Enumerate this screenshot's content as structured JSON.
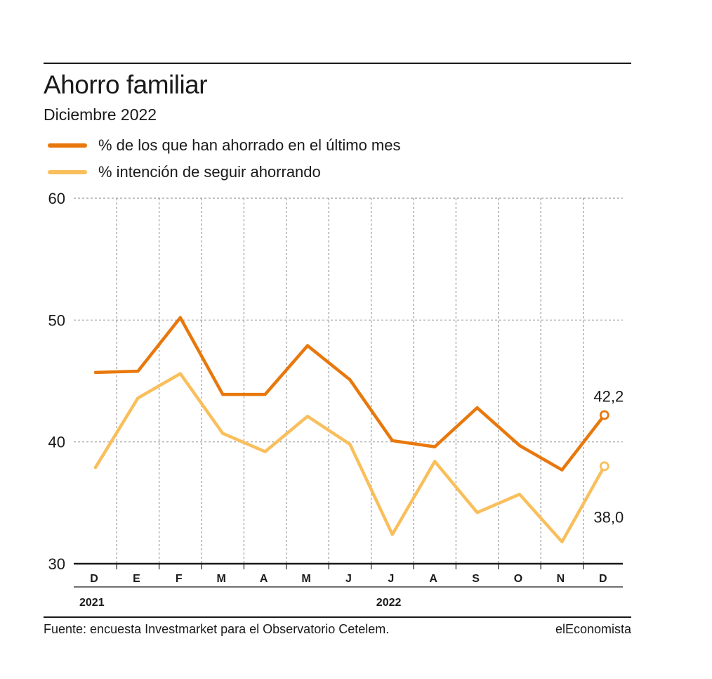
{
  "header": {
    "title": "Ahorro familiar",
    "subtitle": "Diciembre 2022"
  },
  "footer": {
    "source": "Fuente: encuesta Investmarket para el Observatorio Cetelem.",
    "brand": "elEconomista"
  },
  "colors": {
    "series1": "#e8780c",
    "series2": "#f9bf5c",
    "grid": "#9a9a9a",
    "axis": "#1a1a1a"
  },
  "chart_data": {
    "type": "line",
    "title": "Ahorro familiar",
    "subtitle": "Diciembre 2022",
    "categories": [
      "D",
      "E",
      "F",
      "M",
      "A",
      "M",
      "J",
      "J",
      "A",
      "S",
      "O",
      "N",
      "D"
    ],
    "year_labels": [
      {
        "label": "2021",
        "index": 0
      },
      {
        "label": "2022",
        "index": 7
      }
    ],
    "ylim": [
      30,
      60
    ],
    "yticks": [
      30,
      40,
      50,
      60
    ],
    "grid": true,
    "legend_position": "top-left",
    "series": [
      {
        "name": "% de los que han ahorrado en el último mes",
        "color": "#e8780c",
        "values": [
          45.7,
          45.8,
          50.2,
          43.9,
          43.9,
          47.9,
          45.1,
          40.1,
          39.6,
          42.8,
          39.7,
          37.7,
          42.2
        ],
        "end_label": "42,2"
      },
      {
        "name": "% intención de seguir ahorrando",
        "color": "#f9bf5c",
        "values": [
          37.9,
          43.6,
          45.6,
          40.7,
          39.2,
          42.1,
          39.8,
          32.4,
          38.4,
          34.2,
          35.7,
          31.8,
          38.0
        ],
        "end_label": "38,0"
      }
    ]
  }
}
